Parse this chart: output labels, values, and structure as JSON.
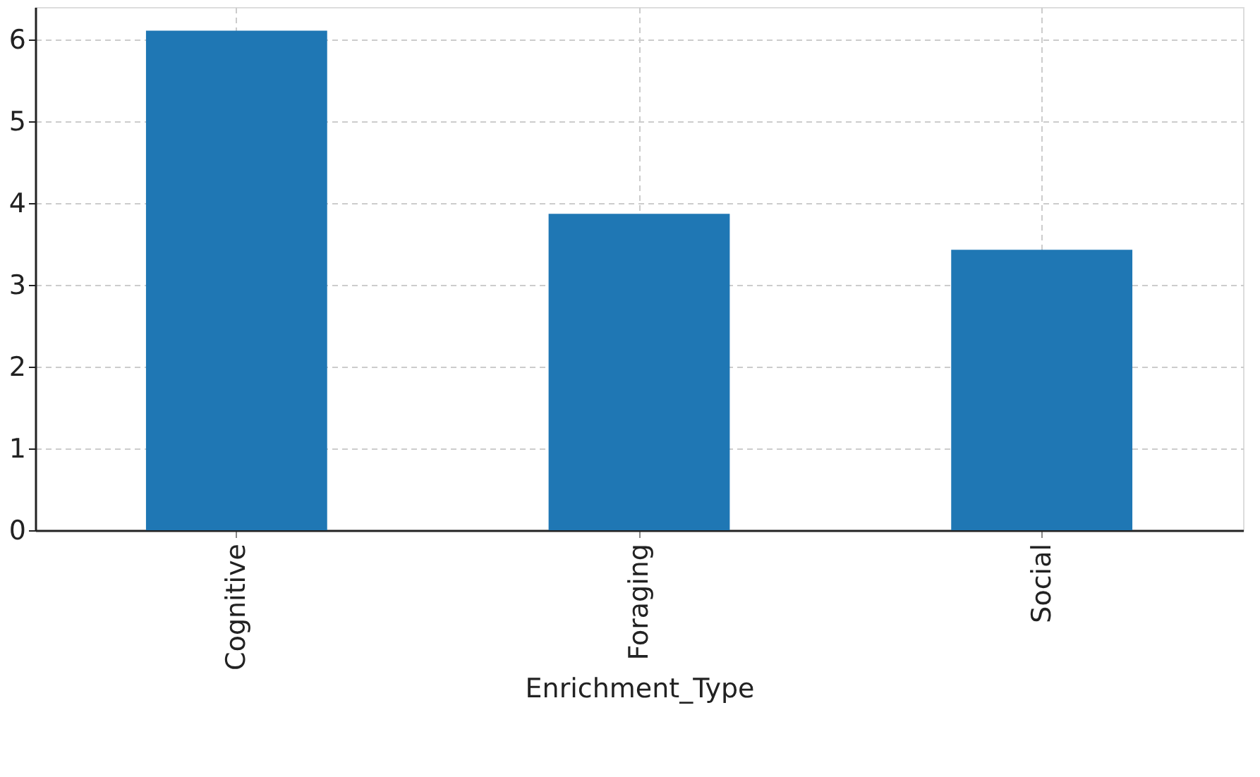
{
  "chart_data": {
    "type": "bar",
    "xlabel": "Enrichment_Type",
    "categories": [
      "Cognitive",
      "Foraging",
      "Social"
    ],
    "values": [
      6.11,
      3.87,
      3.43
    ],
    "color": "#1f77b4",
    "ylim": [
      0,
      6.4
    ],
    "yticks": [
      0,
      1,
      2,
      3,
      4,
      5,
      6
    ],
    "grid": true
  }
}
